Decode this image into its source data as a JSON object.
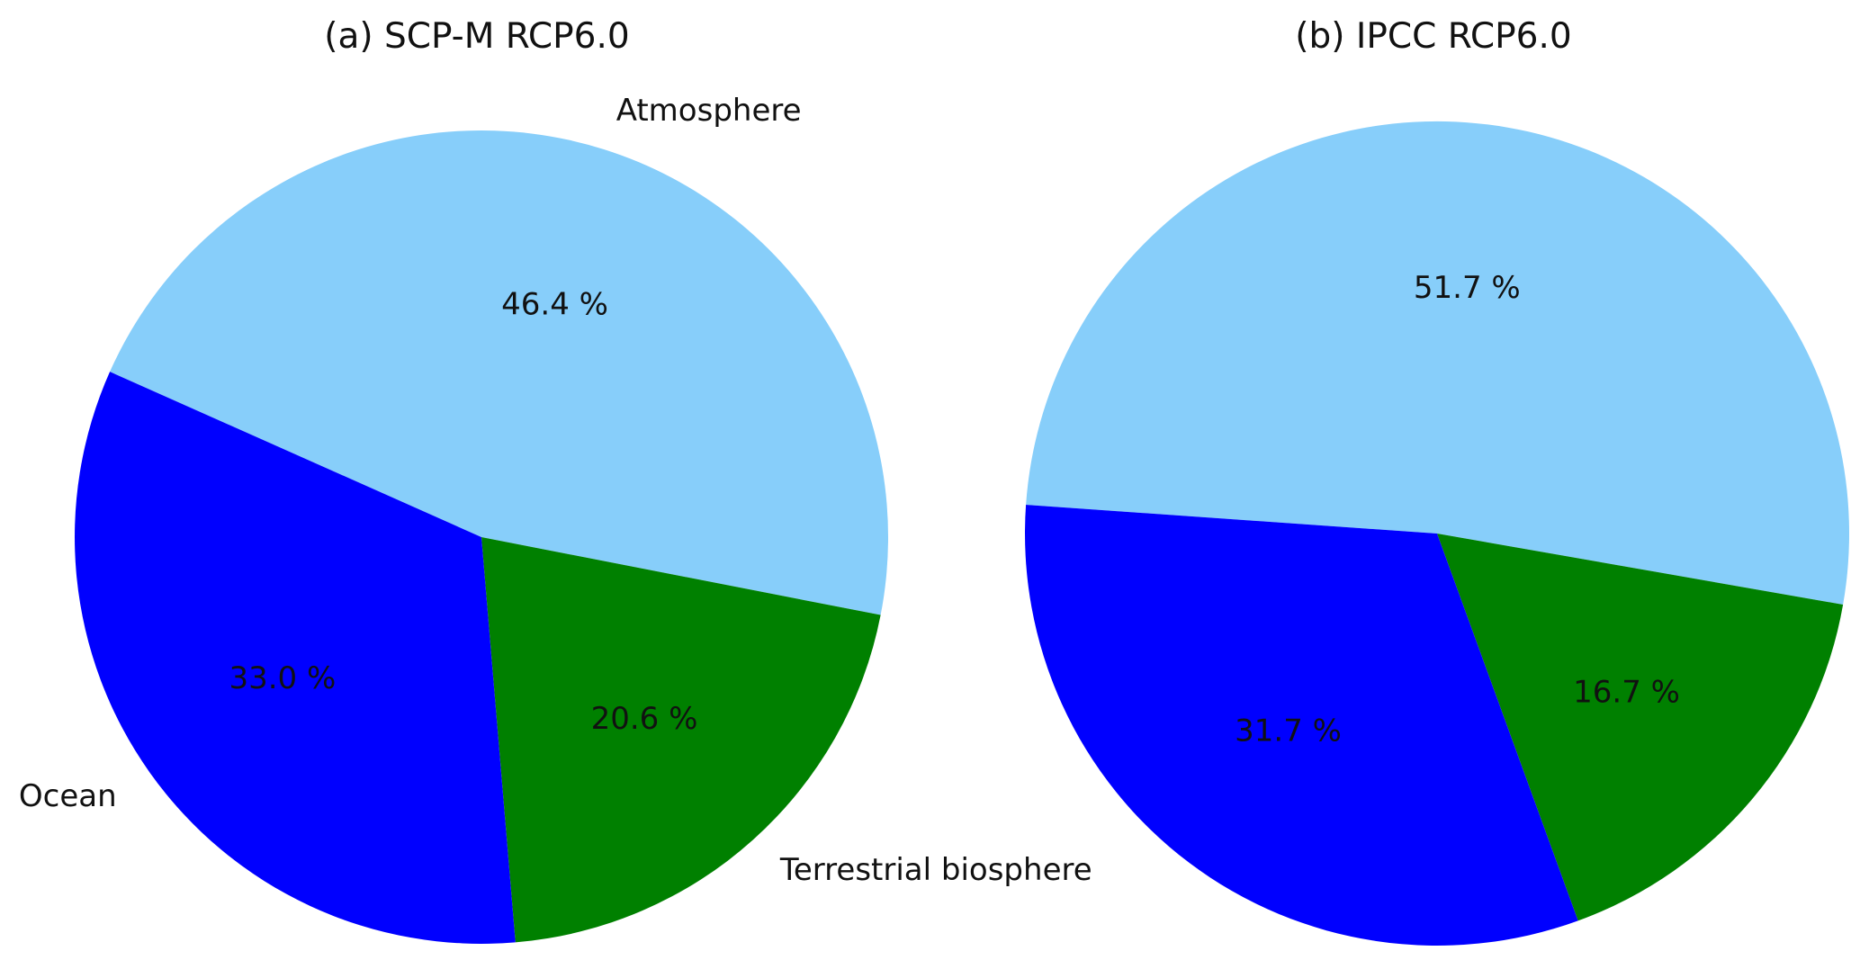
{
  "chart_data": [
    {
      "type": "pie",
      "title": "(a) SCP-M RCP6.0",
      "categories": [
        "Atmosphere",
        "Terrestrial biosphere",
        "Ocean"
      ],
      "values": [
        46.4,
        20.6,
        33.0
      ],
      "value_labels": [
        "46.4 %",
        "20.6 %",
        "33.0 %"
      ],
      "show_category_labels": true,
      "colors": [
        "#87cefa",
        "#008000",
        "#0000ff"
      ],
      "start_angle_deg": 156,
      "direction": "clockwise"
    },
    {
      "type": "pie",
      "title": "(b) IPCC RCP6.0",
      "categories": [
        "Atmosphere",
        "Terrestrial biosphere",
        "Ocean"
      ],
      "values": [
        51.7,
        16.7,
        31.7
      ],
      "value_labels": [
        "51.7 %",
        "16.7 %",
        "31.7 %"
      ],
      "show_category_labels": false,
      "colors": [
        "#87cefa",
        "#008000",
        "#0000ff"
      ],
      "start_angle_deg": 176,
      "direction": "clockwise"
    }
  ]
}
